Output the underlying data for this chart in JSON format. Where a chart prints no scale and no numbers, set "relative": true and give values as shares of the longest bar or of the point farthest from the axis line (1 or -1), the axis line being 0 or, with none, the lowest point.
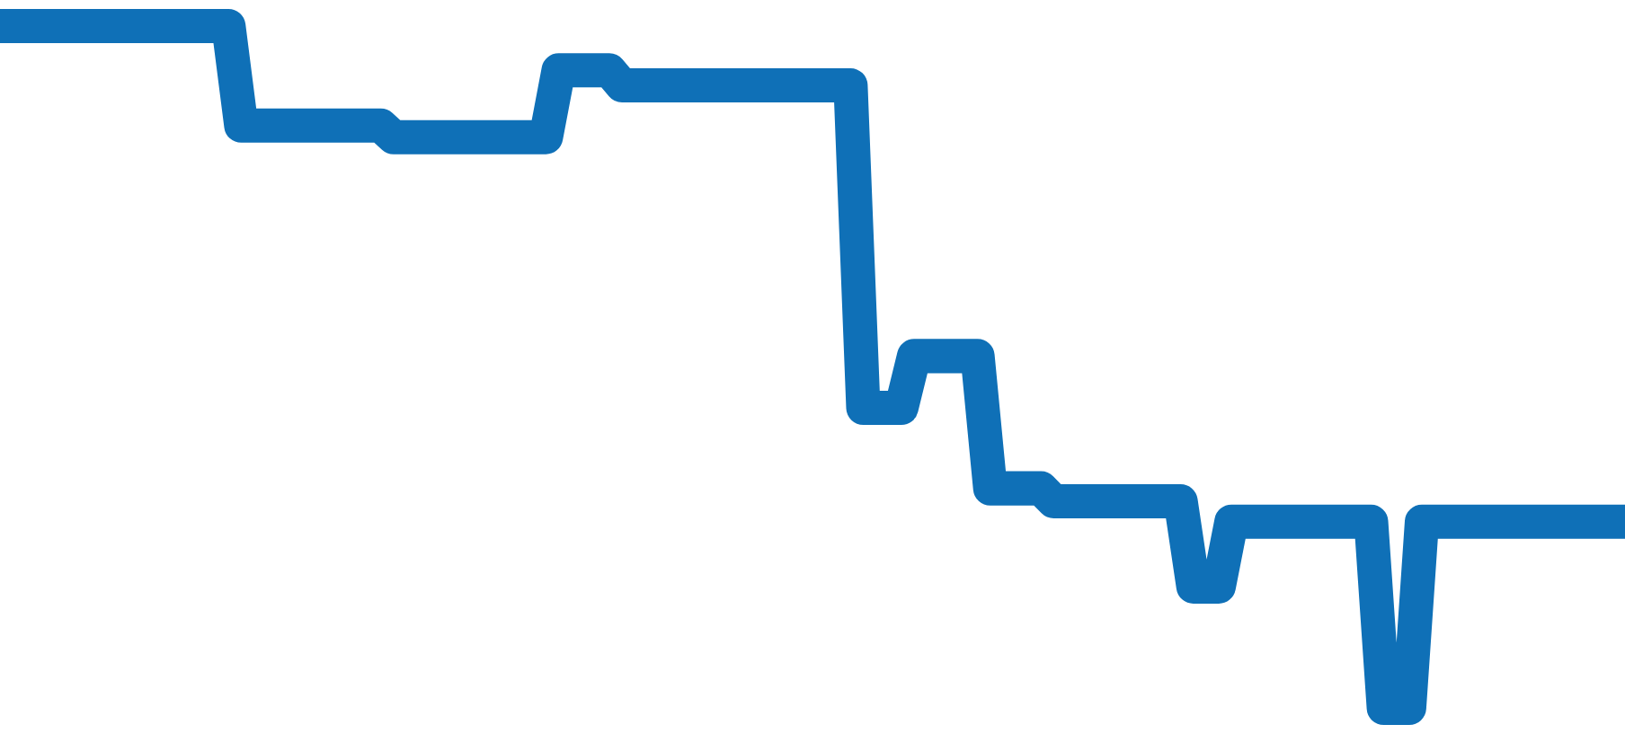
{
  "chart_data": {
    "type": "line",
    "relative": true,
    "color": "#0f70b7",
    "categories": [
      null,
      null,
      null,
      null,
      null,
      null,
      null,
      null,
      null,
      null,
      null,
      null,
      null,
      null,
      null,
      null,
      null,
      null,
      null,
      null,
      null,
      null,
      null,
      null,
      null,
      null,
      null,
      null,
      null,
      null,
      null,
      null,
      null,
      null,
      null,
      null,
      null,
      null,
      null,
      null,
      null,
      null,
      null,
      null,
      null,
      null,
      null,
      null,
      null,
      null,
      null,
      null,
      null,
      null,
      null,
      null,
      null,
      null,
      null,
      null,
      null,
      null,
      null,
      null,
      null,
      null,
      null,
      null,
      null,
      null,
      null,
      null,
      null,
      null,
      null,
      null,
      null,
      null,
      null,
      null,
      null,
      null,
      null,
      null,
      null,
      null,
      null,
      null,
      null,
      null,
      null,
      null,
      null,
      null,
      null,
      null,
      null,
      null,
      null,
      null,
      null,
      null,
      null,
      null,
      null,
      null,
      null,
      null,
      null,
      null,
      null,
      null,
      null,
      null,
      null,
      null,
      null,
      null,
      null,
      null,
      null,
      null,
      null,
      null,
      null,
      null,
      null,
      null,
      null
    ],
    "values": [
      1,
      1,
      1,
      1,
      1,
      1,
      1,
      1,
      1,
      1,
      1,
      1,
      1,
      1,
      1,
      1,
      1,
      1,
      1,
      0.854,
      0.854,
      0.854,
      0.854,
      0.854,
      0.854,
      0.854,
      0.854,
      0.854,
      0.854,
      0.854,
      0.854,
      0.837,
      0.837,
      0.837,
      0.837,
      0.837,
      0.837,
      0.837,
      0.837,
      0.837,
      0.837,
      0.837,
      0.837,
      0.837,
      0.935,
      0.935,
      0.935,
      0.935,
      0.935,
      0.913,
      0.913,
      0.913,
      0.913,
      0.913,
      0.913,
      0.913,
      0.913,
      0.913,
      0.913,
      0.913,
      0.913,
      0.913,
      0.913,
      0.913,
      0.913,
      0.913,
      0.913,
      0.913,
      0.44,
      0.44,
      0.44,
      0.44,
      0.516,
      0.516,
      0.516,
      0.516,
      0.516,
      0.516,
      0.322,
      0.322,
      0.322,
      0.322,
      0.322,
      0.303,
      0.303,
      0.303,
      0.303,
      0.303,
      0.303,
      0.303,
      0.303,
      0.303,
      0.303,
      0.303,
      0.178,
      0.178,
      0.178,
      0.273,
      0.273,
      0.273,
      0.273,
      0.273,
      0.273,
      0.273,
      0.273,
      0.273,
      0.273,
      0.273,
      0.273,
      0,
      0,
      0,
      0.273,
      0.273,
      0.273,
      0.273,
      0.273,
      0.273,
      0.273,
      0.273,
      0.273,
      0.273,
      0.273,
      0.273,
      0.273,
      0.273,
      0.273,
      0.273,
      0.273
    ]
  }
}
